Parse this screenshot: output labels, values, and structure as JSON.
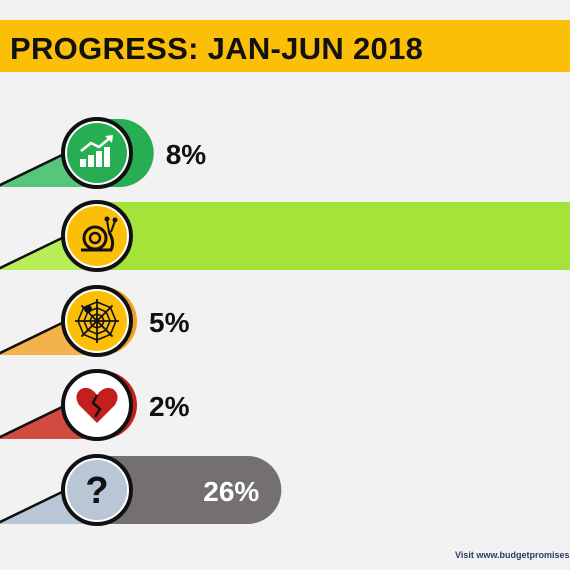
{
  "title": "PROGRESS: JAN-JUN 2018",
  "footer": "Visit www.budgetpromises.c",
  "chart_data": {
    "type": "bar",
    "orientation": "horizontal",
    "categories": [
      "Achieved",
      "Slow",
      "Stuck",
      "Broken",
      "Unclear"
    ],
    "values": [
      8,
      67,
      5,
      2,
      26
    ],
    "value_labels": [
      "8%",
      "",
      "5%",
      "2%",
      "26%"
    ],
    "colors": [
      "#27ae52",
      "#a6e33a",
      "#f0a222",
      "#c3201d",
      "#757070"
    ],
    "tail_colors": [
      "#56c77a",
      "#b7ee58",
      "#f3b24a",
      "#d24a40",
      "#b8c6d6"
    ],
    "icons": [
      "growth-chart-icon",
      "snail-icon",
      "spiderweb-icon",
      "broken-heart-icon",
      "question-mark-icon"
    ],
    "icon_glyph": [
      "",
      "",
      "",
      "",
      "?"
    ],
    "label_color": [
      "#111111",
      "#111111",
      "#111111",
      "#111111",
      "#ffffff"
    ],
    "label_inside": [
      false,
      false,
      false,
      false,
      true
    ],
    "xlim": [
      0,
      67
    ]
  }
}
